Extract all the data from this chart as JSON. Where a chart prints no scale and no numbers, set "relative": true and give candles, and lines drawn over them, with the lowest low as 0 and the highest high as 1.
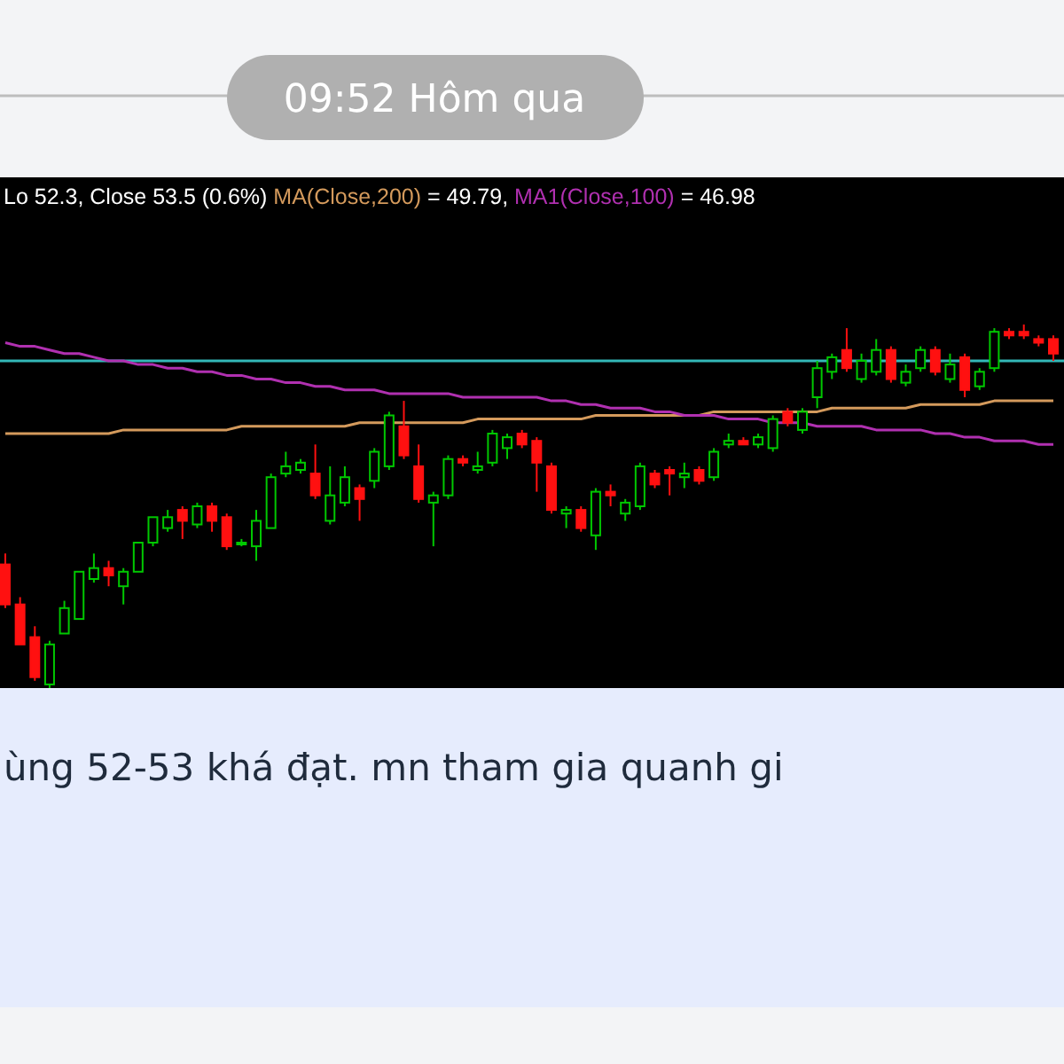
{
  "chart_data": {
    "type": "candlestick",
    "relative": true,
    "title": "Lo 52.3, Close 53.5 (0.6%)",
    "legend": "top",
    "categories": [
      null,
      null,
      null,
      null,
      null,
      null,
      null,
      null,
      null,
      null,
      null,
      null,
      null,
      null,
      null,
      null,
      null,
      null,
      null,
      null,
      null,
      null,
      null,
      null,
      null,
      null,
      null,
      null,
      null,
      null,
      null,
      null,
      null,
      null,
      null,
      null,
      null,
      null,
      null,
      null,
      null,
      null,
      null,
      null,
      null,
      null,
      null,
      null,
      null,
      null,
      null,
      null,
      null,
      null,
      null,
      null,
      null,
      null,
      null,
      null,
      null,
      null,
      null,
      null,
      null,
      null,
      null,
      null,
      null,
      null,
      null,
      null
    ],
    "ohlc": [
      [
        0.34,
        0.37,
        0.22,
        0.23
      ],
      [
        0.23,
        0.25,
        0.12,
        0.12
      ],
      [
        0.14,
        0.17,
        0.02,
        0.03
      ],
      [
        0.01,
        0.13,
        0,
        0.12
      ],
      [
        0.15,
        0.24,
        0.15,
        0.22
      ],
      [
        0.19,
        0.32,
        0.19,
        0.32
      ],
      [
        0.3,
        0.37,
        0.29,
        0.33
      ],
      [
        0.33,
        0.35,
        0.28,
        0.31
      ],
      [
        0.28,
        0.33,
        0.23,
        0.32
      ],
      [
        0.32,
        0.4,
        0.32,
        0.4
      ],
      [
        0.4,
        0.47,
        0.39,
        0.47
      ],
      [
        0.44,
        0.49,
        0.43,
        0.47
      ],
      [
        0.49,
        0.5,
        0.41,
        0.46
      ],
      [
        0.45,
        0.51,
        0.44,
        0.5
      ],
      [
        0.5,
        0.51,
        0.43,
        0.46
      ],
      [
        0.47,
        0.48,
        0.38,
        0.39
      ],
      [
        0.4,
        0.41,
        0.39,
        0.4
      ],
      [
        0.39,
        0.49,
        0.35,
        0.46
      ],
      [
        0.44,
        0.59,
        0.44,
        0.58
      ],
      [
        0.59,
        0.65,
        0.58,
        0.61
      ],
      [
        0.6,
        0.63,
        0.59,
        0.62
      ],
      [
        0.59,
        0.67,
        0.52,
        0.53
      ],
      [
        0.46,
        0.61,
        0.45,
        0.53
      ],
      [
        0.51,
        0.61,
        0.5,
        0.58
      ],
      [
        0.55,
        0.56,
        0.46,
        0.52
      ],
      [
        0.57,
        0.66,
        0.55,
        0.65
      ],
      [
        0.61,
        0.76,
        0.6,
        0.75
      ],
      [
        0.72,
        0.79,
        0.63,
        0.64
      ],
      [
        0.61,
        0.67,
        0.51,
        0.52
      ],
      [
        0.51,
        0.54,
        0.39,
        0.53
      ],
      [
        0.53,
        0.64,
        0.52,
        0.63
      ],
      [
        0.63,
        0.64,
        0.61,
        0.62
      ],
      [
        0.6,
        0.65,
        0.59,
        0.61
      ],
      [
        0.62,
        0.71,
        0.61,
        0.7
      ],
      [
        0.66,
        0.7,
        0.63,
        0.69
      ],
      [
        0.7,
        0.71,
        0.66,
        0.67
      ],
      [
        0.68,
        0.69,
        0.54,
        0.62
      ],
      [
        0.61,
        0.62,
        0.48,
        0.49
      ],
      [
        0.48,
        0.5,
        0.44,
        0.49
      ],
      [
        0.49,
        0.5,
        0.43,
        0.44
      ],
      [
        0.42,
        0.55,
        0.38,
        0.54
      ],
      [
        0.54,
        0.56,
        0.5,
        0.53
      ],
      [
        0.48,
        0.52,
        0.46,
        0.51
      ],
      [
        0.5,
        0.62,
        0.49,
        0.61
      ],
      [
        0.59,
        0.6,
        0.55,
        0.56
      ],
      [
        0.6,
        0.61,
        0.53,
        0.59
      ],
      [
        0.58,
        0.62,
        0.55,
        0.59
      ],
      [
        0.6,
        0.61,
        0.56,
        0.57
      ],
      [
        0.58,
        0.66,
        0.57,
        0.65
      ],
      [
        0.67,
        0.7,
        0.66,
        0.68
      ],
      [
        0.68,
        0.69,
        0.67,
        0.67
      ],
      [
        0.67,
        0.7,
        0.66,
        0.69
      ],
      [
        0.66,
        0.75,
        0.65,
        0.74
      ],
      [
        0.76,
        0.77,
        0.72,
        0.73
      ],
      [
        0.71,
        0.77,
        0.7,
        0.76
      ],
      [
        0.8,
        0.9,
        0.77,
        0.88
      ],
      [
        0.87,
        0.92,
        0.85,
        0.91
      ],
      [
        0.93,
        0.99,
        0.87,
        0.88
      ],
      [
        0.85,
        0.92,
        0.84,
        0.9
      ],
      [
        0.87,
        0.96,
        0.86,
        0.93
      ],
      [
        0.93,
        0.94,
        0.84,
        0.85
      ],
      [
        0.84,
        0.89,
        0.83,
        0.87
      ],
      [
        0.88,
        0.94,
        0.87,
        0.93
      ],
      [
        0.93,
        0.94,
        0.86,
        0.87
      ],
      [
        0.85,
        0.92,
        0.84,
        0.89
      ],
      [
        0.91,
        0.92,
        0.8,
        0.82
      ],
      [
        0.83,
        0.88,
        0.82,
        0.87
      ],
      [
        0.88,
        0.99,
        0.87,
        0.98
      ],
      [
        0.98,
        0.99,
        0.96,
        0.97
      ],
      [
        0.98,
        1,
        0.96,
        0.97
      ],
      [
        0.96,
        0.97,
        0.94,
        0.95
      ],
      [
        0.96,
        0.97,
        0.9,
        0.92
      ]
    ],
    "series": [
      {
        "name": "MA(Close,200)",
        "type": "line",
        "color": "#d49a5c",
        "values": [
          0.7,
          0.7,
          0.7,
          0.7,
          0.7,
          0.7,
          0.7,
          0.7,
          0.71,
          0.71,
          0.71,
          0.71,
          0.71,
          0.71,
          0.71,
          0.71,
          0.72,
          0.72,
          0.72,
          0.72,
          0.72,
          0.72,
          0.72,
          0.72,
          0.73,
          0.73,
          0.73,
          0.73,
          0.73,
          0.73,
          0.73,
          0.73,
          0.74,
          0.74,
          0.74,
          0.74,
          0.74,
          0.74,
          0.74,
          0.74,
          0.75,
          0.75,
          0.75,
          0.75,
          0.75,
          0.75,
          0.75,
          0.75,
          0.76,
          0.76,
          0.76,
          0.76,
          0.76,
          0.76,
          0.76,
          0.76,
          0.77,
          0.77,
          0.77,
          0.77,
          0.77,
          0.77,
          0.78,
          0.78,
          0.78,
          0.78,
          0.78,
          0.79,
          0.79,
          0.79,
          0.79,
          0.79
        ]
      },
      {
        "name": "MA1(Close,100)",
        "type": "line",
        "color": "#b030b0",
        "values": [
          0.95,
          0.94,
          0.94,
          0.93,
          0.92,
          0.92,
          0.91,
          0.9,
          0.9,
          0.89,
          0.89,
          0.88,
          0.88,
          0.87,
          0.87,
          0.86,
          0.86,
          0.85,
          0.85,
          0.84,
          0.84,
          0.83,
          0.83,
          0.82,
          0.82,
          0.82,
          0.81,
          0.81,
          0.81,
          0.81,
          0.81,
          0.8,
          0.8,
          0.8,
          0.8,
          0.8,
          0.8,
          0.79,
          0.79,
          0.78,
          0.78,
          0.77,
          0.77,
          0.77,
          0.76,
          0.76,
          0.75,
          0.75,
          0.75,
          0.74,
          0.74,
          0.74,
          0.73,
          0.73,
          0.73,
          0.72,
          0.72,
          0.72,
          0.72,
          0.71,
          0.71,
          0.71,
          0.71,
          0.7,
          0.7,
          0.69,
          0.69,
          0.68,
          0.68,
          0.68,
          0.67,
          0.67
        ]
      }
    ],
    "ref_lines": [
      {
        "axis": "y",
        "value": 0.9,
        "color": "#33b8b8"
      }
    ],
    "annotations": [
      " = 49.79,",
      " = 46.98",
      "09:52 Hôm qua",
      "ùng 52-53 khá đạt. mn tham gia quanh gi"
    ]
  }
}
